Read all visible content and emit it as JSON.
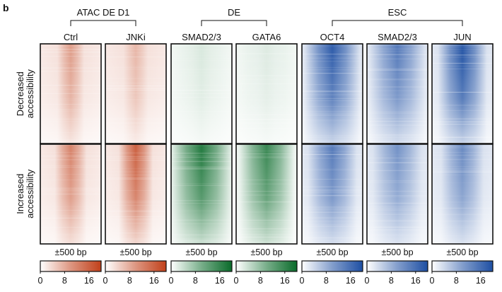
{
  "panel_label": "b",
  "groups": [
    {
      "label": "ATAC DE D1",
      "columns": [
        0,
        1
      ]
    },
    {
      "label": "DE",
      "columns": [
        2,
        3
      ]
    },
    {
      "label": "ESC",
      "columns": [
        4,
        5,
        6
      ]
    }
  ],
  "rows": [
    {
      "line1": "Decreased",
      "line2": "accessibility"
    },
    {
      "line1": "Increased",
      "line2": "accessibility"
    }
  ],
  "window_label": "±500 bp",
  "colorbar_ticks": [
    "0",
    "8",
    "16"
  ],
  "chart_data": {
    "type": "heatmap",
    "columns": [
      {
        "name": "Ctrl",
        "colormap": "orange",
        "max_color": "#c1401a",
        "intensity": [
          0.45,
          0.6
        ],
        "width": [
          0.22,
          0.26
        ]
      },
      {
        "name": "JNKi",
        "colormap": "orange",
        "max_color": "#c1401a",
        "intensity": [
          0.3,
          0.8
        ],
        "width": [
          0.2,
          0.28
        ]
      },
      {
        "name": "SMAD2/3",
        "colormap": "green",
        "max_color": "#0a6b2a",
        "intensity": [
          0.12,
          0.95
        ],
        "width": [
          0.3,
          0.5
        ]
      },
      {
        "name": "GATA6",
        "colormap": "green",
        "max_color": "#0a6b2a",
        "intensity": [
          0.1,
          0.85
        ],
        "width": [
          0.3,
          0.45
        ]
      },
      {
        "name": "OCT4",
        "colormap": "blue",
        "max_color": "#1e4fa3",
        "intensity": [
          0.9,
          0.7
        ],
        "width": [
          0.45,
          0.4
        ]
      },
      {
        "name": "SMAD2/3",
        "colormap": "blue",
        "max_color": "#1e4fa3",
        "intensity": [
          0.7,
          0.55
        ],
        "width": [
          0.45,
          0.4
        ]
      },
      {
        "name": "JUN",
        "colormap": "blue",
        "max_color": "#1e4fa3",
        "intensity": [
          0.95,
          0.6
        ],
        "width": [
          0.4,
          0.35
        ]
      }
    ],
    "colorbar_range": [
      0,
      20
    ],
    "colorbar_tick_values": [
      0,
      8,
      16
    ]
  }
}
